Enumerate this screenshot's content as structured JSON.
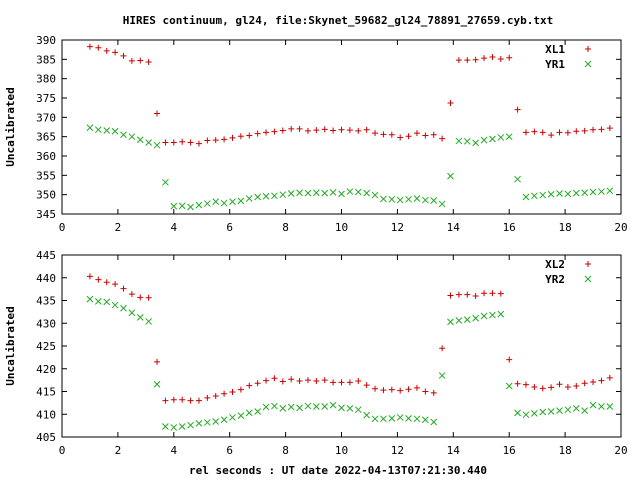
{
  "title": "HIRES continuum, gl24, file:Skynet_59682_gl24_78891_27659.cyb.txt",
  "xlabel": "rel seconds : UT date 2022-04-13T07:21:30.440",
  "colors": {
    "red": "#cc0000",
    "green": "#22aa22",
    "axis": "#000000"
  },
  "chart_data": [
    {
      "type": "scatter",
      "ylabel": "Uncalibrated",
      "xlim": [
        0,
        20
      ],
      "ylim": [
        345,
        390
      ],
      "xticks": [
        "0",
        "2",
        "4",
        "6",
        "8",
        "10",
        "12",
        "14",
        "16",
        "18",
        "20"
      ],
      "yticks": [
        "345",
        "350",
        "355",
        "360",
        "365",
        "370",
        "375",
        "380",
        "385",
        "390"
      ],
      "grid": false,
      "legend_position": "top-right",
      "x": [
        1.0,
        1.3,
        1.6,
        1.9,
        2.2,
        2.5,
        2.8,
        3.1,
        3.4,
        3.7,
        4.0,
        4.3,
        4.6,
        4.9,
        5.2,
        5.5,
        5.8,
        6.1,
        6.4,
        6.7,
        7.0,
        7.3,
        7.6,
        7.9,
        8.2,
        8.5,
        8.8,
        9.1,
        9.4,
        9.7,
        10.0,
        10.3,
        10.6,
        10.9,
        11.2,
        11.5,
        11.8,
        12.1,
        12.4,
        12.7,
        13.0,
        13.3,
        13.6,
        13.9,
        14.2,
        14.5,
        14.8,
        15.1,
        15.4,
        15.7,
        16.0,
        16.3,
        16.6,
        16.9,
        17.2,
        17.5,
        17.8,
        18.1,
        18.4,
        18.7,
        19.0,
        19.3,
        19.6
      ],
      "series": [
        {
          "name": "XL1",
          "marker": "+",
          "color": "#cc0000",
          "values": [
            388.3,
            388.0,
            387.2,
            386.8,
            385.9,
            384.6,
            384.7,
            384.3,
            371.0,
            363.5,
            363.5,
            363.7,
            363.5,
            363.2,
            364.0,
            364.1,
            364.3,
            364.7,
            365.1,
            365.3,
            365.8,
            366.1,
            366.3,
            366.6,
            367.0,
            367.0,
            366.5,
            366.7,
            366.9,
            366.6,
            366.8,
            366.7,
            366.5,
            366.8,
            365.9,
            365.6,
            365.5,
            364.8,
            365.1,
            365.9,
            365.3,
            365.5,
            364.5,
            373.7,
            384.8,
            384.8,
            384.9,
            385.3,
            385.6,
            385.1,
            385.4,
            372.0,
            366.1,
            366.3,
            366.1,
            365.4,
            366.1,
            366.0,
            366.4,
            366.5,
            366.8,
            366.9,
            367.2
          ]
        },
        {
          "name": "YR1",
          "marker": "x",
          "color": "#22aa22",
          "values": [
            367.3,
            366.8,
            366.6,
            366.4,
            365.5,
            365.0,
            364.2,
            363.5,
            362.8,
            353.2,
            347.0,
            347.1,
            346.8,
            347.3,
            347.7,
            348.2,
            347.8,
            348.2,
            348.4,
            349.0,
            349.4,
            349.6,
            349.7,
            350.0,
            350.3,
            350.5,
            350.4,
            350.5,
            350.4,
            350.6,
            350.2,
            350.8,
            350.7,
            350.4,
            349.9,
            348.9,
            348.8,
            348.6,
            348.8,
            349.0,
            348.6,
            348.5,
            347.6,
            354.8,
            363.9,
            363.8,
            363.4,
            364.1,
            364.4,
            364.8,
            365.0,
            354.0,
            349.4,
            349.7,
            349.9,
            350.1,
            350.3,
            350.2,
            350.4,
            350.5,
            350.7,
            350.8,
            351.0
          ]
        }
      ]
    },
    {
      "type": "scatter",
      "ylabel": "Uncalibrated",
      "xlim": [
        0,
        20
      ],
      "ylim": [
        405,
        445
      ],
      "xticks": [
        "0",
        "2",
        "4",
        "6",
        "8",
        "10",
        "12",
        "14",
        "16",
        "18",
        "20"
      ],
      "yticks": [
        "405",
        "410",
        "415",
        "420",
        "425",
        "430",
        "435",
        "440",
        "445"
      ],
      "grid": false,
      "legend_position": "top-right",
      "x": [
        1.0,
        1.3,
        1.6,
        1.9,
        2.2,
        2.5,
        2.8,
        3.1,
        3.4,
        3.7,
        4.0,
        4.3,
        4.6,
        4.9,
        5.2,
        5.5,
        5.8,
        6.1,
        6.4,
        6.7,
        7.0,
        7.3,
        7.6,
        7.9,
        8.2,
        8.5,
        8.8,
        9.1,
        9.4,
        9.7,
        10.0,
        10.3,
        10.6,
        10.9,
        11.2,
        11.5,
        11.8,
        12.1,
        12.4,
        12.7,
        13.0,
        13.3,
        13.6,
        13.9,
        14.2,
        14.5,
        14.8,
        15.1,
        15.4,
        15.7,
        16.0,
        16.3,
        16.6,
        16.9,
        17.2,
        17.5,
        17.8,
        18.1,
        18.4,
        18.7,
        19.0,
        19.3,
        19.6
      ],
      "series": [
        {
          "name": "XL2",
          "marker": "+",
          "color": "#cc0000",
          "values": [
            440.3,
            439.6,
            439.0,
            438.6,
            437.6,
            436.4,
            435.7,
            435.6,
            421.5,
            413.0,
            413.2,
            413.2,
            413.0,
            413.0,
            413.6,
            414.0,
            414.5,
            414.9,
            415.4,
            416.3,
            416.8,
            417.4,
            417.9,
            417.2,
            417.7,
            417.3,
            417.5,
            417.3,
            417.5,
            417.0,
            417.0,
            417.0,
            417.3,
            416.4,
            415.6,
            415.3,
            415.4,
            415.2,
            415.5,
            415.8,
            415.0,
            414.7,
            424.5,
            436.1,
            436.3,
            436.3,
            436.0,
            436.6,
            436.6,
            436.5,
            422.0,
            416.7,
            416.5,
            416.0,
            415.7,
            415.9,
            416.6,
            416.0,
            416.2,
            416.8,
            417.1,
            417.4,
            418.0
          ]
        },
        {
          "name": "YR2",
          "marker": "x",
          "color": "#22aa22",
          "values": [
            435.3,
            434.8,
            434.7,
            434.0,
            433.3,
            432.3,
            431.3,
            430.4,
            416.6,
            407.3,
            407.1,
            407.3,
            407.6,
            408.0,
            408.2,
            408.4,
            408.8,
            409.3,
            409.7,
            410.3,
            410.6,
            411.6,
            411.8,
            411.3,
            411.6,
            411.4,
            411.8,
            411.7,
            411.7,
            412.0,
            411.4,
            411.3,
            411.0,
            409.8,
            409.0,
            409.0,
            409.1,
            409.3,
            409.1,
            409.0,
            408.8,
            408.3,
            418.5,
            430.3,
            430.6,
            430.8,
            431.1,
            431.6,
            431.8,
            432.0,
            416.2,
            410.3,
            409.9,
            410.2,
            410.5,
            410.6,
            410.8,
            411.0,
            411.3,
            410.8,
            412.0,
            411.7,
            411.7
          ]
        }
      ]
    }
  ]
}
